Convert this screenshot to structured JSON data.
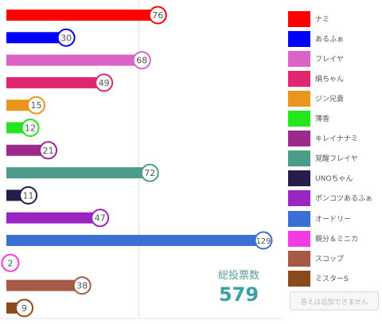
{
  "chart_data": {
    "type": "bar",
    "orientation": "horizontal",
    "categories": [
      "ナミ",
      "あるふぁ",
      "フレイヤ",
      "絹ちゃん",
      "ジン兄貴",
      "薄香",
      "キレイナナミ",
      "覚醒フレイヤ",
      "UNOちゃん",
      "ポンコツあるふぁ",
      "オードリー",
      "親分＆ミニカ",
      "スコップ",
      "ミスターS"
    ],
    "values": [
      76,
      30,
      68,
      49,
      15,
      12,
      21,
      72,
      11,
      47,
      129,
      2,
      38,
      9
    ],
    "colors": [
      "#ff0000",
      "#0000ff",
      "#da63c6",
      "#e0266e",
      "#e8961e",
      "#22e61e",
      "#9b2a8a",
      "#4d9b8b",
      "#281c4a",
      "#9a26c2",
      "#3a6fd4",
      "#f23ce0",
      "#a45a44",
      "#8b4a1e"
    ],
    "xlim": [
      0,
      133
    ],
    "grid": true,
    "legend": "right",
    "xlabel": "",
    "ylabel": ""
  },
  "total": {
    "label": "総投票数",
    "value": "579"
  },
  "add_answer_button": {
    "label": "答えは追加できません"
  }
}
